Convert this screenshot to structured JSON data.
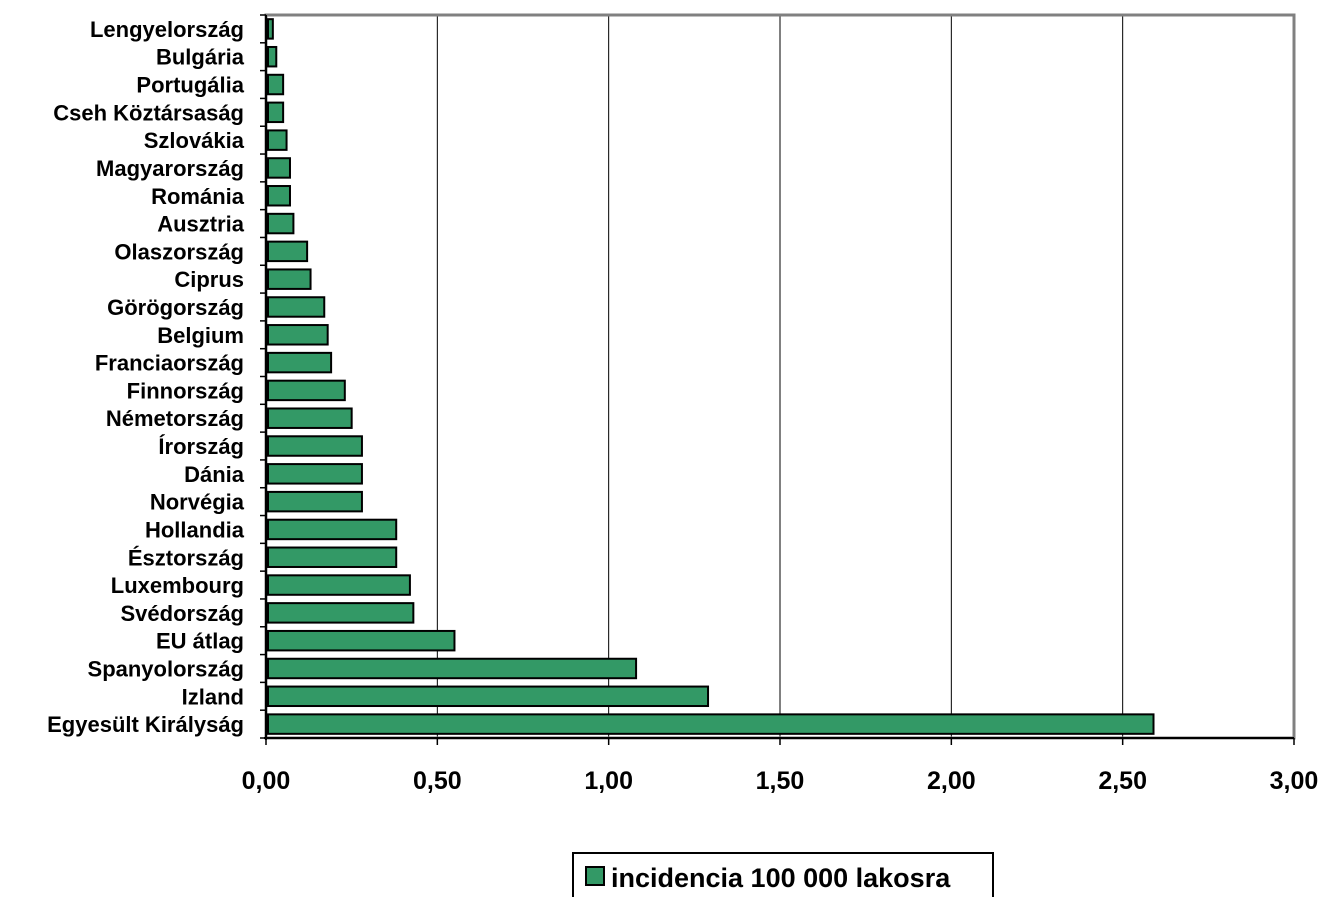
{
  "chart_data": {
    "type": "bar",
    "orientation": "horizontal",
    "categories": [
      "Lengyelország",
      "Bulgária",
      "Portugália",
      "Cseh Köztársaság",
      "Szlovákia",
      "Magyarország",
      "Románia",
      "Ausztria",
      "Olaszország",
      "Ciprus",
      "Görögország",
      "Belgium",
      "Franciaország",
      "Finnország",
      "Németország",
      "Írország",
      "Dánia",
      "Norvégia",
      "Hollandia",
      "Észtország",
      "Luxembourg",
      "Svédország",
      "EU átlag",
      "Spanyolország",
      "Izland",
      "Egyesült Királyság"
    ],
    "series": [
      {
        "name": "incidencia 100 000 lakosra",
        "values": [
          0.02,
          0.03,
          0.05,
          0.05,
          0.06,
          0.07,
          0.07,
          0.08,
          0.12,
          0.13,
          0.17,
          0.18,
          0.19,
          0.23,
          0.25,
          0.28,
          0.28,
          0.28,
          0.38,
          0.38,
          0.42,
          0.43,
          0.55,
          1.08,
          1.29,
          2.59
        ],
        "color": "#339966"
      }
    ],
    "xlim": [
      0,
      3
    ],
    "xticks": [
      "0,00",
      "0,50",
      "1,00",
      "1,50",
      "2,00",
      "2,50",
      "3,00"
    ],
    "grid": "vertical",
    "legend_position": "bottom-center"
  }
}
